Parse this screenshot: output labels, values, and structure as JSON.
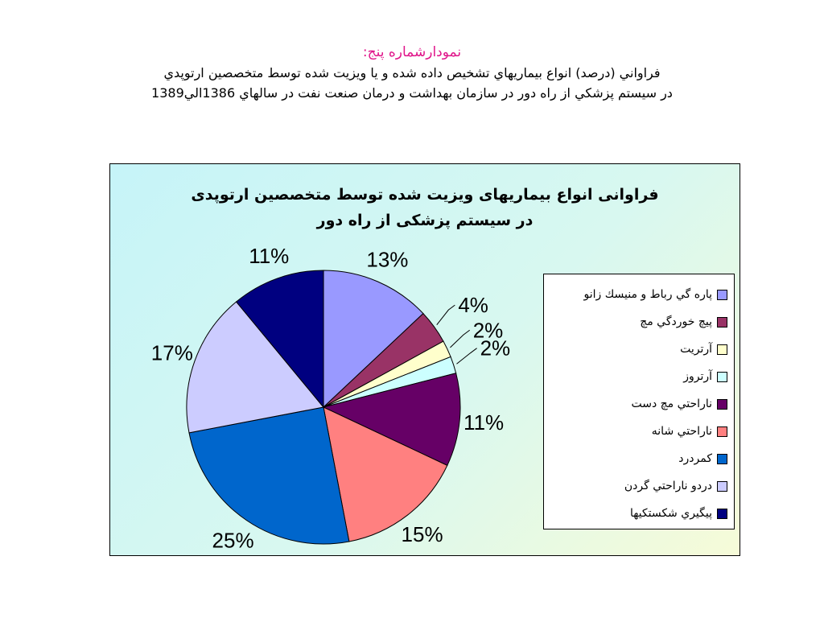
{
  "header": {
    "title": "نمودارشماره پنج:",
    "line1": "فراواني (درصد) انواع بيماريهاي تشخيص داده شده و يا ويزيت شده توسط متخصصين ارتوپدي",
    "line2": "در سيستم پزشكي از راه دور در سازمان بهداشت و درمان صنعت نفت در سالهاي 1386الي1389"
  },
  "chart_data": {
    "type": "pie",
    "title": "فراوانی انواع بیماریهای ویزیت شده توسط متخصصین ارتوپدی",
    "subtitle": "در سیستم پزشکی از راه دور",
    "legend_position": "right",
    "start_angle": "12 o'clock",
    "direction": "clockwise",
    "slices": [
      {
        "name": "پاره گي رباط و منيسك زانو",
        "value": 13,
        "label": "13%",
        "color": "#9999ff"
      },
      {
        "name": "پيچ خوردگي مچ",
        "value": 4,
        "label": "4%",
        "color": "#993366"
      },
      {
        "name": "آرتريت",
        "value": 2,
        "label": "2%",
        "color": "#ffffcc"
      },
      {
        "name": "آرتروز",
        "value": 2,
        "label": "2%",
        "color": "#ccffff"
      },
      {
        "name": "ناراحتي مچ دست",
        "value": 11,
        "label": "11%",
        "color": "#660066"
      },
      {
        "name": "ناراحتي شانه",
        "value": 15,
        "label": "15%",
        "color": "#ff8080"
      },
      {
        "name": "كمردرد",
        "value": 25,
        "label": "25%",
        "color": "#0066cc"
      },
      {
        "name": "دردو ناراحتي گردن",
        "value": 17,
        "label": "17%",
        "color": "#ccccff"
      },
      {
        "name": "پيگيري شكستكيها",
        "value": 11,
        "label": "11%",
        "color": "#000080"
      }
    ]
  }
}
